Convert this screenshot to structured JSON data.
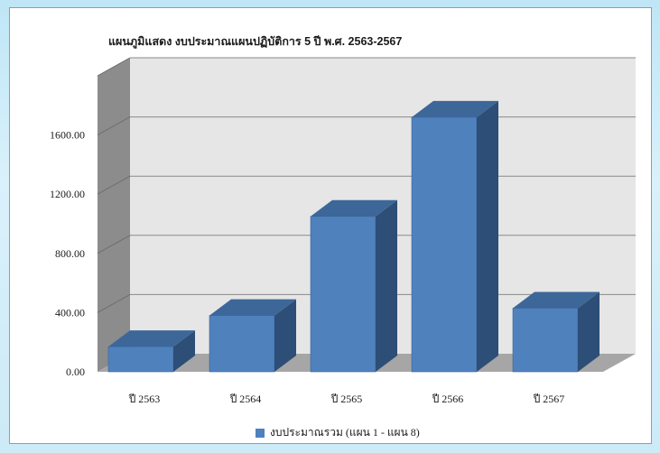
{
  "chart_data": {
    "type": "bar",
    "title": "แผนภูมิแสดง งบประมาณแผนปฏิบัติการ 5 ปี พ.ศ. 2563-2567",
    "categories": [
      "ปี 2563",
      "ปี 2564",
      "ปี 2565",
      "ปี 2566",
      "ปี 2567"
    ],
    "series": [
      {
        "name": "งบประมาณรวม (แผน 1 - แผน 8)",
        "values": [
          170,
          380,
          1050,
          1720,
          430
        ]
      }
    ],
    "y_ticks": [
      "0.00",
      "400.00",
      "800.00",
      "1200.00",
      "1600.00"
    ],
    "ylim": [
      0,
      2000
    ],
    "grid": true,
    "legend_position": "bottom",
    "colors": {
      "bar_front": "#4f81bd",
      "bar_top": "#3d6799",
      "bar_side": "#2d4e76",
      "wall": "#e6e6e6",
      "wall_side": "#8c8c8c",
      "floor": "#a6a6a6"
    }
  }
}
